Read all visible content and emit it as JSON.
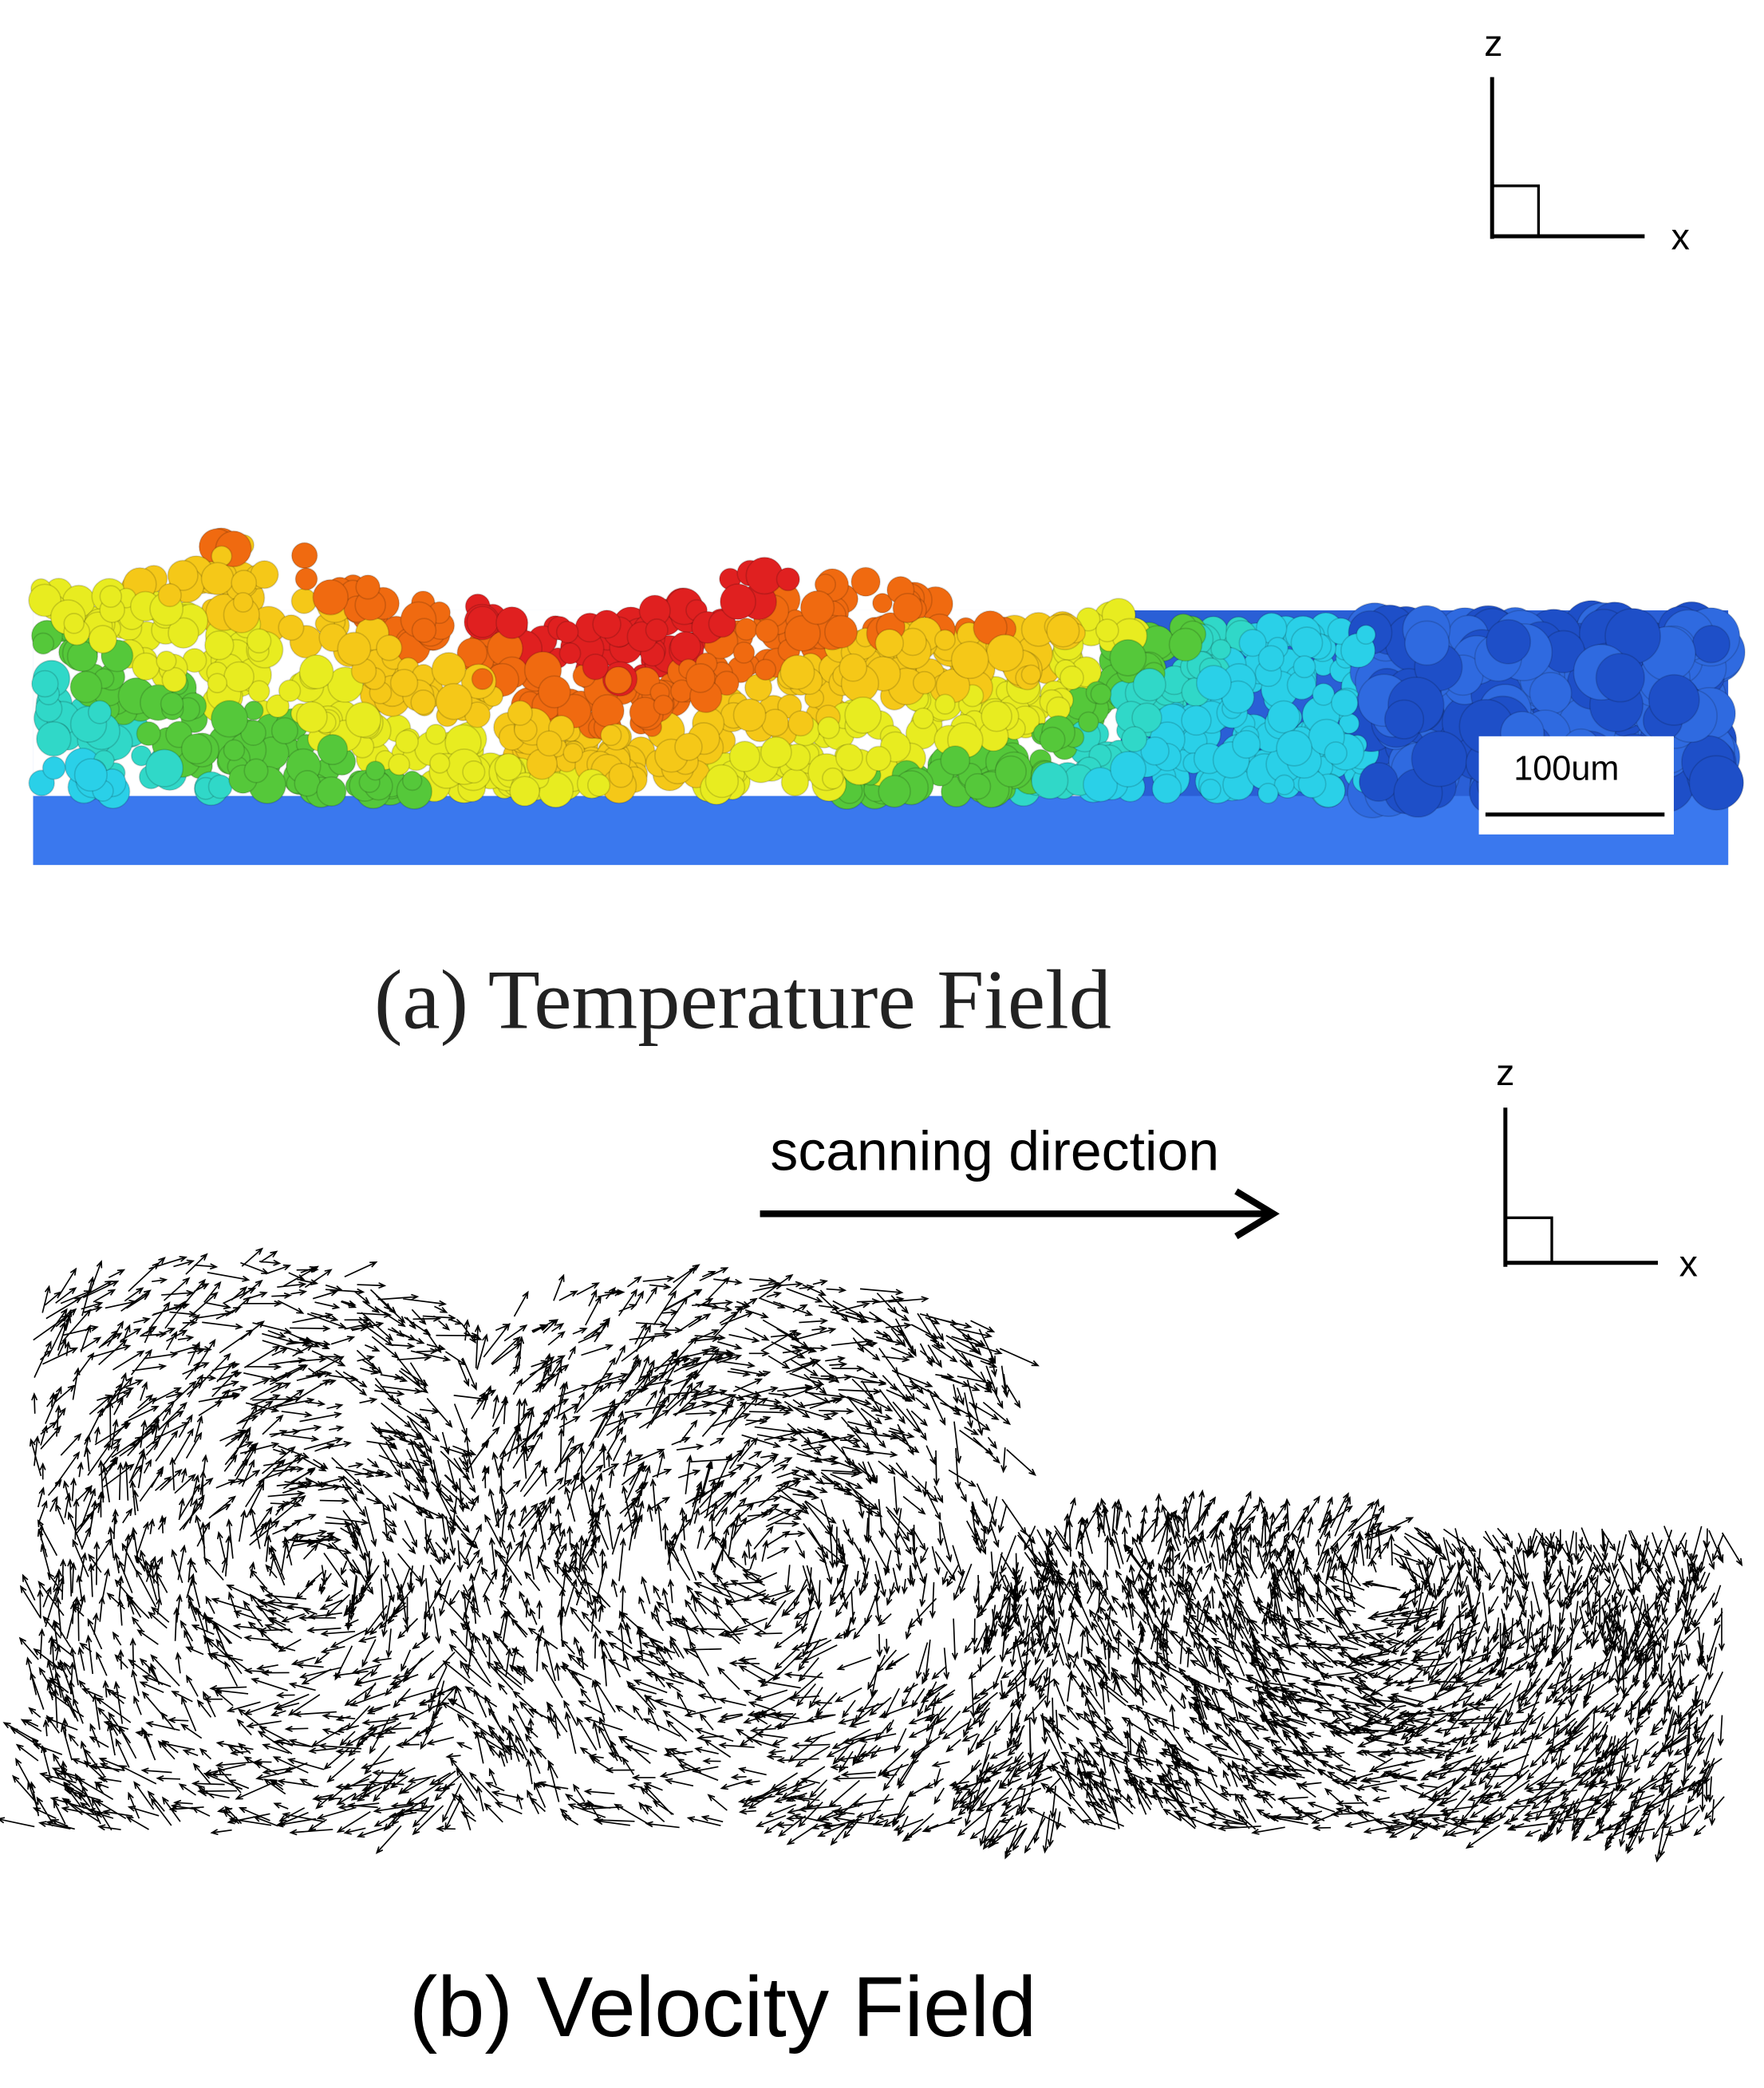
{
  "panel_a": {
    "axes": {
      "z": "z",
      "x": "x"
    },
    "scale_bar": "100um",
    "caption": "(a) Temperature Field"
  },
  "panel_b": {
    "axes": {
      "z": "z",
      "x": "x"
    },
    "annotation": "scanning direction",
    "caption": "(b) Velocity Field"
  }
}
